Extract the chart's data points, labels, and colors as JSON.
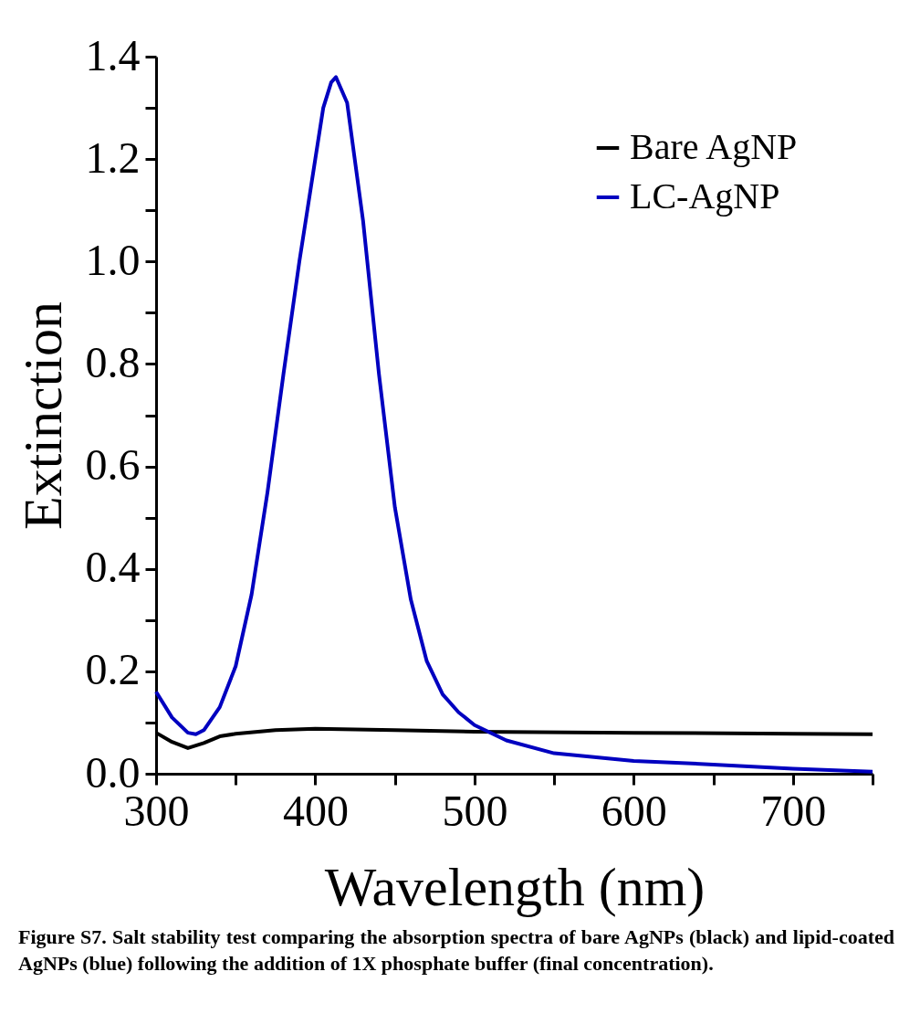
{
  "chart_data": {
    "type": "line",
    "xlabel": "Wavelength (nm)",
    "ylabel": "Extinction",
    "xlim": [
      300,
      750
    ],
    "xticks": [
      300,
      {
        "value": 350,
        "label": null
      },
      400,
      {
        "value": 450,
        "label": null
      },
      500,
      {
        "value": 550,
        "label": null
      },
      600,
      {
        "value": 650,
        "label": null
      },
      700,
      {
        "value": 750,
        "label": null
      }
    ],
    "ylim": [
      0,
      1.4
    ],
    "yticks": [
      {
        "value": 0,
        "label": "0.0"
      },
      {
        "value": 0.1,
        "label": null
      },
      {
        "value": 0.2,
        "label": "0.2"
      },
      {
        "value": 0.3,
        "label": null
      },
      {
        "value": 0.4,
        "label": "0.4"
      },
      {
        "value": 0.5,
        "label": null
      },
      {
        "value": 0.6,
        "label": "0.6"
      },
      {
        "value": 0.7,
        "label": null
      },
      {
        "value": 0.8,
        "label": "0.8"
      },
      {
        "value": 0.9,
        "label": null
      },
      {
        "value": 1.0,
        "label": "1.0"
      },
      {
        "value": 1.1,
        "label": null
      },
      {
        "value": 1.2,
        "label": "1.2"
      },
      {
        "value": 1.3,
        "label": null
      },
      {
        "value": 1.4,
        "label": "1.4"
      }
    ],
    "grid": false,
    "legend": "top right",
    "marker": "none",
    "line_style": "solid",
    "series": [
      {
        "name": "Bare AgNP",
        "color": "#000000",
        "x": [
          300,
          310,
          320,
          330,
          340,
          350,
          375,
          400,
          450,
          500,
          600,
          700,
          750
        ],
        "values": [
          0.08,
          0.062,
          0.05,
          0.06,
          0.073,
          0.078,
          0.085,
          0.088,
          0.085,
          0.082,
          0.08,
          0.078,
          0.077
        ]
      },
      {
        "name": "LC-AgNP",
        "color": "#0000c0",
        "x": [
          300,
          310,
          320,
          325,
          330,
          340,
          350,
          360,
          370,
          380,
          390,
          400,
          405,
          410,
          413,
          420,
          430,
          440,
          450,
          460,
          470,
          480,
          490,
          500,
          520,
          550,
          600,
          650,
          700,
          750
        ],
        "values": [
          0.16,
          0.11,
          0.08,
          0.077,
          0.085,
          0.13,
          0.21,
          0.35,
          0.55,
          0.78,
          1.0,
          1.2,
          1.3,
          1.35,
          1.36,
          1.31,
          1.08,
          0.78,
          0.52,
          0.34,
          0.22,
          0.155,
          0.12,
          0.095,
          0.065,
          0.04,
          0.025,
          0.018,
          0.01,
          0.004
        ]
      }
    ],
    "annotations": [
      "Figure S7. Salt stability test comparing the absorption spectra of bare AgNPs (black) and lipid-coated AgNPs (blue) following the addition of 1X phosphate buffer (final concentration)."
    ]
  }
}
